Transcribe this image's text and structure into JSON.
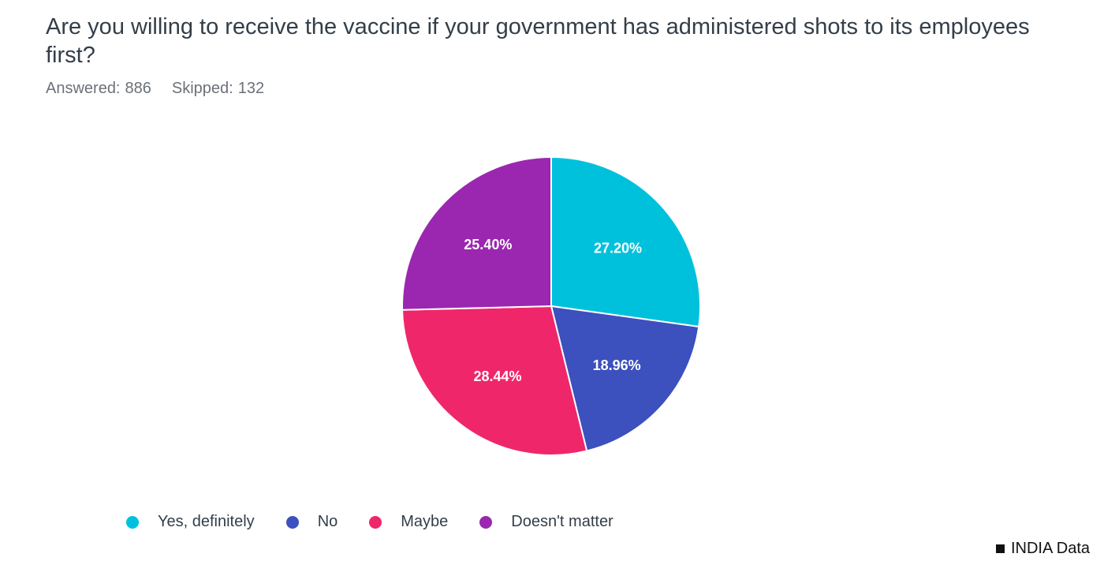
{
  "question": {
    "title": "Are you willing to receive the vaccine if your government has administered shots to its employees first?",
    "answered_label": "Answered:",
    "answered_value": "886",
    "skipped_label": "Skipped:",
    "skipped_value": "132"
  },
  "chart_data": {
    "type": "pie",
    "categories": [
      "Yes, definitely",
      "No",
      "Maybe",
      "Doesn't matter"
    ],
    "values": [
      27.2,
      18.96,
      28.44,
      25.4
    ],
    "labels": [
      "27.20%",
      "18.96%",
      "28.44%",
      "25.40%"
    ],
    "colors": [
      "#00c1dc",
      "#3c50be",
      "#f0266a",
      "#9b27b0"
    ],
    "start_angle_deg": 0,
    "direction": "clockwise",
    "legend_position": "bottom"
  },
  "source": {
    "label": "INDIA Data"
  }
}
